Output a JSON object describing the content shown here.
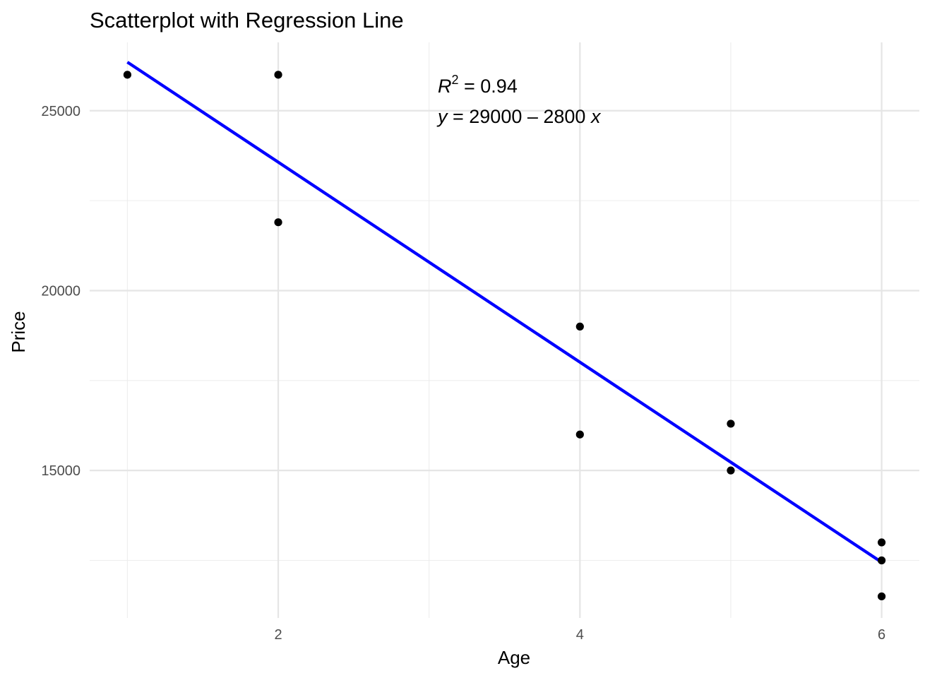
{
  "chart_data": {
    "type": "scatter",
    "title": "Scatterplot with Regression Line",
    "xlabel": "Age",
    "ylabel": "Price",
    "xlim": [
      0.75,
      6.25
    ],
    "ylim": [
      10900,
      26900
    ],
    "x_ticks": [
      2,
      4,
      6
    ],
    "x_tick_labels": [
      "2",
      "4",
      "6"
    ],
    "x_minor": [
      1,
      3,
      5
    ],
    "y_ticks": [
      15000,
      20000,
      25000
    ],
    "y_tick_labels": [
      "15000",
      "20000",
      "25000"
    ],
    "y_minor": [
      12500,
      17500,
      22500
    ],
    "grid": true,
    "points": [
      {
        "x": 1,
        "y": 26000
      },
      {
        "x": 2,
        "y": 26000
      },
      {
        "x": 2,
        "y": 21900
      },
      {
        "x": 4,
        "y": 19000
      },
      {
        "x": 4,
        "y": 16000
      },
      {
        "x": 5,
        "y": 16300
      },
      {
        "x": 5,
        "y": 15000
      },
      {
        "x": 6,
        "y": 13000
      },
      {
        "x": 6,
        "y": 12500
      },
      {
        "x": 6,
        "y": 11500
      }
    ],
    "regression": {
      "x_start": 1,
      "x_end": 6,
      "y_start": 26350,
      "y_end": 12450,
      "color": "#0000ff"
    },
    "annotation": {
      "r2_symbol": "R",
      "r2_exponent": "2",
      "r2_value": " = 0.94",
      "equation_lhs": "y",
      "equation_middle": " = 29000 – 2800 ",
      "equation_var": "x"
    }
  }
}
